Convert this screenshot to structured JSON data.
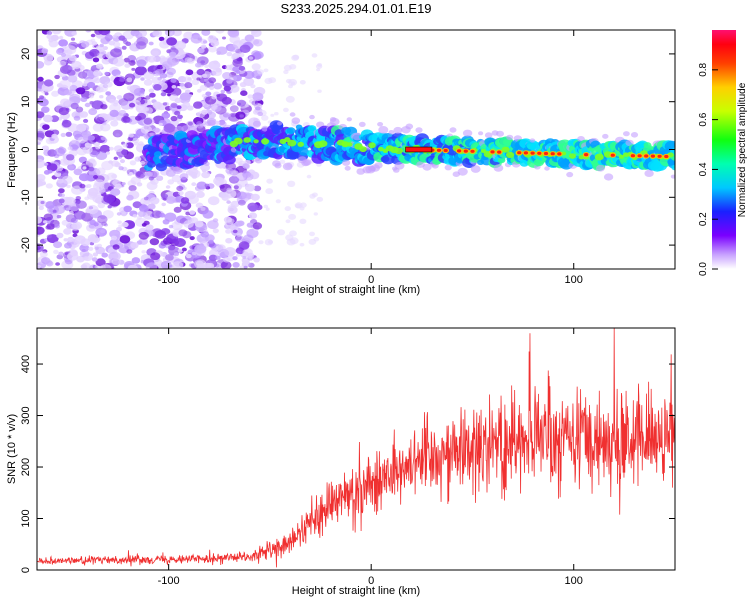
{
  "figure": {
    "title": "S233.2025.294.01.01.E19"
  },
  "chart_data": [
    {
      "type": "heatmap",
      "title": "S233.2025.294.01.01.E19",
      "xlabel": "Height of straight line (km)",
      "ylabel": "Frequency (Hz)",
      "xlim": [
        -165,
        150
      ],
      "ylim": [
        -25,
        25
      ],
      "x_ticks": [
        -100,
        0,
        100
      ],
      "y_ticks": [
        -20,
        -10,
        0,
        10,
        20
      ],
      "grid": false,
      "colorbar": {
        "label": "Normalized spectral amplitude",
        "range": [
          0,
          0.96
        ],
        "ticks": [
          0.0,
          0.2,
          0.4,
          0.6,
          0.8
        ],
        "tick_labels": [
          "0.0",
          "0.2",
          "0.4",
          "0.6",
          "0.8"
        ],
        "colormap": "rainbow (white-purple-blue-cyan-green-yellow-orange-red-pink)"
      },
      "description_of_data": "Noisy scattered low-amplitude purple blobs across all frequencies for heights below about -55 km; a coherent band near 0 Hz from about -110 km upward, with high amplitude (orange/red) features near 0 Hz for heights above about 15 km, drifting from about 0 Hz to about -2 Hz at 150 km.",
      "band_center_hz": [
        {
          "x": -110,
          "y": -1.0
        },
        {
          "x": -50,
          "y": 2.0
        },
        {
          "x": -20,
          "y": 1.0
        },
        {
          "x": 20,
          "y": 0.0
        },
        {
          "x": 60,
          "y": -0.5
        },
        {
          "x": 100,
          "y": -1.0
        },
        {
          "x": 150,
          "y": -1.5
        }
      ]
    },
    {
      "type": "line",
      "xlabel": "Height of straight line (km)",
      "ylabel": "SNR (10 * v/v)",
      "xlim": [
        -165,
        150
      ],
      "ylim": [
        0,
        470
      ],
      "x_ticks": [
        -100,
        0,
        100
      ],
      "y_ticks": [
        0,
        100,
        200,
        300,
        400
      ],
      "grid": false,
      "series": [
        {
          "name": "SNR",
          "color": "#f03030",
          "trend": [
            {
              "x": -165,
              "y": 18
            },
            {
              "x": -120,
              "y": 20
            },
            {
              "x": -90,
              "y": 22
            },
            {
              "x": -60,
              "y": 25
            },
            {
              "x": -45,
              "y": 40
            },
            {
              "x": -30,
              "y": 90
            },
            {
              "x": -15,
              "y": 140
            },
            {
              "x": 0,
              "y": 170
            },
            {
              "x": 20,
              "y": 210
            },
            {
              "x": 40,
              "y": 235
            },
            {
              "x": 60,
              "y": 250
            },
            {
              "x": 80,
              "y": 255
            },
            {
              "x": 100,
              "y": 255
            },
            {
              "x": 120,
              "y": 255
            },
            {
              "x": 150,
              "y": 255
            }
          ],
          "spread": [
            {
              "x": -165,
              "y": 10
            },
            {
              "x": -60,
              "y": 14
            },
            {
              "x": -40,
              "y": 40
            },
            {
              "x": -10,
              "y": 80
            },
            {
              "x": 20,
              "y": 100
            },
            {
              "x": 60,
              "y": 130
            },
            {
              "x": 120,
              "y": 140
            },
            {
              "x": 150,
              "y": 120
            }
          ],
          "peak_annotation": {
            "x": 120,
            "y": 470
          }
        }
      ]
    }
  ]
}
